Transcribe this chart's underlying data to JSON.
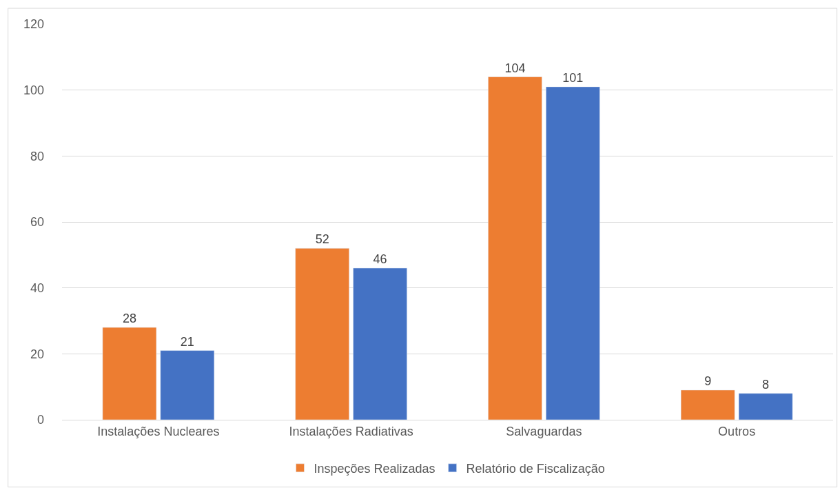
{
  "chart_data": {
    "type": "bar",
    "categories": [
      "Instalações Nucleares",
      "Instalações Radiativas",
      "Salvaguardas",
      "Outros"
    ],
    "series": [
      {
        "name": "Inspeções Realizadas",
        "color": "#ed7d31",
        "values": [
          28,
          52,
          104,
          9
        ]
      },
      {
        "name": "Relatório de Fiscalização",
        "color": "#4472c4",
        "values": [
          21,
          46,
          101,
          8
        ]
      }
    ],
    "ylim": [
      0,
      120
    ],
    "yticks": [
      0,
      20,
      40,
      60,
      80,
      100,
      120
    ],
    "grid": "y",
    "legend": "bottom",
    "data_labels": true
  }
}
